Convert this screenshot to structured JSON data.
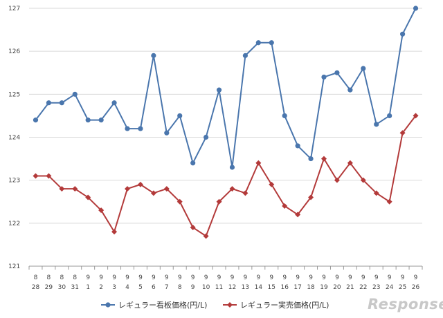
{
  "chart_data": {
    "type": "line",
    "x_month": [
      "8",
      "8",
      "8",
      "8",
      "9",
      "9",
      "9",
      "9",
      "9",
      "9",
      "9",
      "9",
      "9",
      "9",
      "9",
      "9",
      "9",
      "9",
      "9",
      "9",
      "9",
      "9",
      "9",
      "9",
      "9",
      "9",
      "9",
      "9",
      "9",
      "9"
    ],
    "x_day": [
      "28",
      "29",
      "30",
      "31",
      "1",
      "2",
      "3",
      "4",
      "5",
      "6",
      "7",
      "8",
      "9",
      "10",
      "11",
      "12",
      "13",
      "14",
      "15",
      "16",
      "17",
      "18",
      "19",
      "20",
      "21",
      "22",
      "23",
      "24",
      "25",
      "26"
    ],
    "ylim": [
      121,
      127
    ],
    "yticks": [
      121,
      122,
      123,
      124,
      125,
      126,
      127
    ],
    "grid": true,
    "legend_position": "bottom",
    "series": [
      {
        "name": "レギュラー看板価格(円/L)",
        "color": "#4a76ad",
        "marker": "circle",
        "values": [
          124.4,
          124.8,
          124.8,
          125.0,
          124.4,
          124.4,
          124.8,
          124.2,
          124.2,
          125.9,
          124.1,
          124.5,
          123.4,
          124.0,
          125.1,
          123.3,
          125.9,
          126.2,
          126.2,
          124.5,
          123.8,
          123.5,
          125.4,
          125.5,
          125.1,
          125.6,
          124.3,
          124.5,
          126.4,
          127.0
        ]
      },
      {
        "name": "レギュラー実売価格(円/L)",
        "color": "#b33a3a",
        "marker": "diamond",
        "values": [
          123.1,
          123.1,
          122.8,
          122.8,
          122.6,
          122.3,
          121.8,
          122.8,
          122.9,
          122.7,
          122.8,
          122.5,
          121.9,
          121.7,
          122.5,
          122.8,
          122.7,
          123.4,
          122.9,
          122.4,
          122.2,
          122.6,
          123.5,
          123.0,
          123.4,
          123.0,
          122.7,
          122.5,
          124.1,
          124.5
        ]
      }
    ]
  },
  "watermark": "Response."
}
